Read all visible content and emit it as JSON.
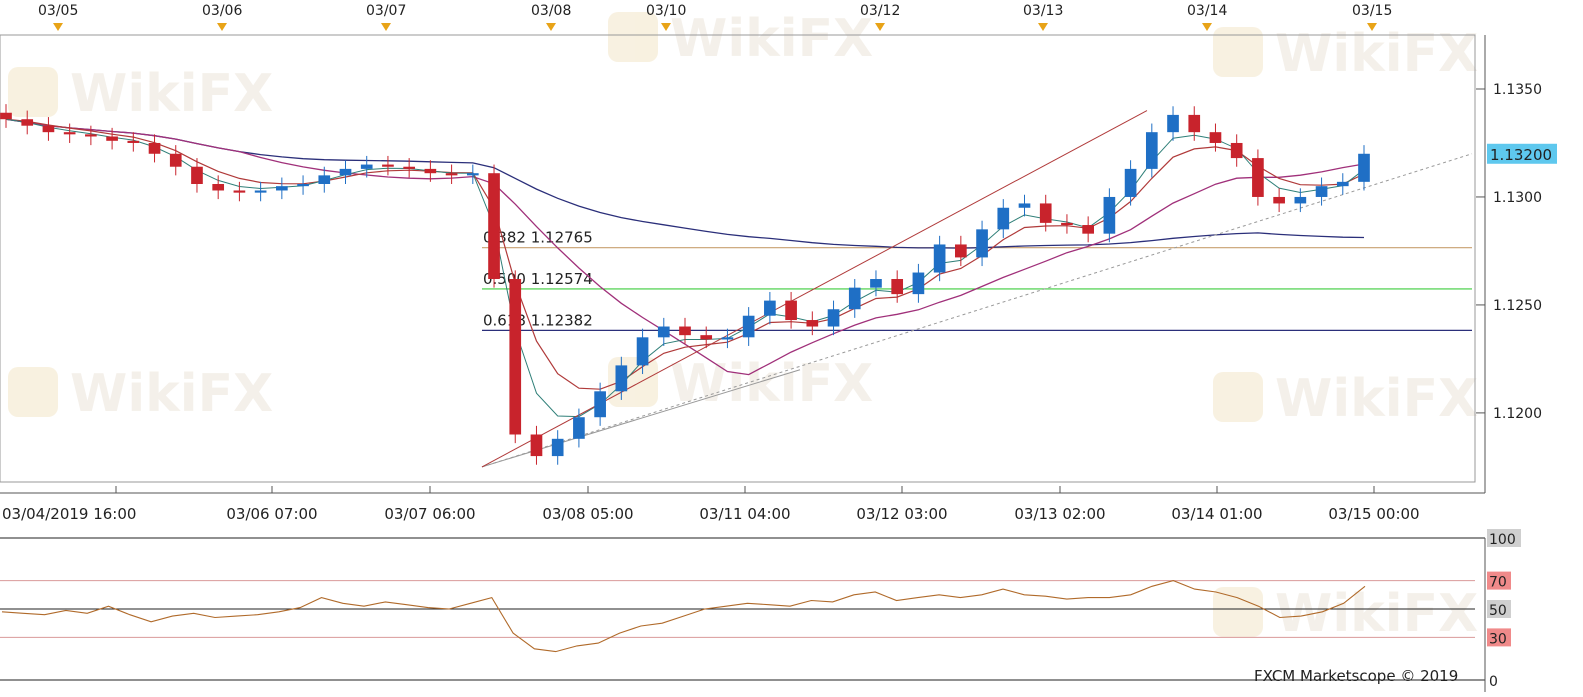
{
  "colors": {
    "bull_candle": "#1f6fc5",
    "bear_candle": "#c8232c",
    "sma_long": "#2b2f7a",
    "sma_mid": "#a0307a",
    "ema_fast": "#b03a3a",
    "ema_faster": "#2f7f78",
    "fib_382": "#c8a070",
    "fib_500": "#3ccc3c",
    "fib_618": "#2b2f7a",
    "rsi_line": "#b06a2a",
    "rsi_band": "#d9999a",
    "price_tag_bg": "#5ec8ee",
    "watermark": "#ece4da"
  },
  "header": {
    "date_markers": [
      "03/05",
      "03/06",
      "03/07",
      "03/08",
      "03/10",
      "03/12",
      "03/13",
      "03/14",
      "03/15"
    ]
  },
  "time_axis": {
    "labels": [
      "03/04/2019 16:00",
      "03/06 07:00",
      "03/07 06:00",
      "03/08 05:00",
      "03/11 04:00",
      "03/12 03:00",
      "03/13 02:00",
      "03/14 01:00",
      "03/15 00:00"
    ]
  },
  "price_panel": {
    "last_price_tag": "1.13200",
    "fib_levels": [
      {
        "ratio": "0.382",
        "price": "1.12765",
        "value": 1.12765
      },
      {
        "ratio": "0.500",
        "price": "1.12574",
        "value": 1.12574
      },
      {
        "ratio": "0.618",
        "price": "1.12382",
        "value": 1.12382
      }
    ]
  },
  "rsi_panel": {
    "levels": [
      "100",
      "70",
      "50",
      "30",
      "0"
    ]
  },
  "footer": {
    "copyright": "FXCM Marketscope © 2019"
  },
  "watermark": {
    "text": "WikiFX"
  },
  "chart_data": [
    {
      "type": "line",
      "title": "",
      "xlabel": "",
      "ylabel": "",
      "ylim": [
        1.1168,
        1.1375
      ],
      "y_ticks": [
        "1.1350",
        "1.1300",
        "1.1250",
        "1.1200"
      ],
      "x_tick_labels": [
        "03/04/2019 16:00",
        "03/06 07:00",
        "03/07 06:00",
        "03/08 05:00",
        "03/11 04:00",
        "03/12 03:00",
        "03/13 02:00",
        "03/14 01:00",
        "03/15 00:00"
      ],
      "series": [
        {
          "values": [
            1.1336,
            1.1333,
            1.133,
            1.1329,
            1.1328,
            1.1326,
            1.1325,
            1.132,
            1.1314,
            1.1306,
            1.1303,
            1.1302,
            1.1303,
            1.1305,
            1.1306,
            1.131,
            1.1313,
            1.1315,
            1.1314,
            1.1313,
            1.1311,
            1.131,
            1.1311,
            1.1262,
            1.119,
            1.118,
            1.1188,
            1.1198,
            1.121,
            1.1222,
            1.1235,
            1.124,
            1.1236,
            1.1234,
            1.1235,
            1.1245,
            1.1252,
            1.1243,
            1.124,
            1.1248,
            1.1258,
            1.1262,
            1.1255,
            1.1265,
            1.1278,
            1.1272,
            1.1285,
            1.1295,
            1.1297,
            1.1288,
            1.1287,
            1.1283,
            1.13,
            1.1313,
            1.133,
            1.1338,
            1.133,
            1.1325,
            1.1318,
            1.13,
            1.1297,
            1.13,
            1.1305,
            1.1307,
            1.132
          ]
        }
      ]
    },
    {
      "type": "line",
      "title": "",
      "xlabel": "",
      "ylabel": "",
      "ylim": [
        0,
        100
      ],
      "y_ticks": [
        "100",
        "70",
        "50",
        "30",
        "0"
      ],
      "series": [
        {
          "values": [
            48,
            47,
            46,
            49,
            47,
            52,
            46,
            41,
            45,
            47,
            44,
            45,
            46,
            48,
            51,
            58,
            54,
            52,
            55,
            53,
            51,
            50,
            54,
            58,
            33,
            22,
            20,
            24,
            26,
            33,
            38,
            40,
            45,
            50,
            52,
            54,
            53,
            52,
            56,
            55,
            60,
            62,
            56,
            58,
            60,
            58,
            60,
            64,
            60,
            59,
            57,
            58,
            58,
            60,
            66,
            70,
            64,
            62,
            58,
            52,
            44,
            45,
            48,
            54,
            66
          ]
        }
      ]
    }
  ]
}
